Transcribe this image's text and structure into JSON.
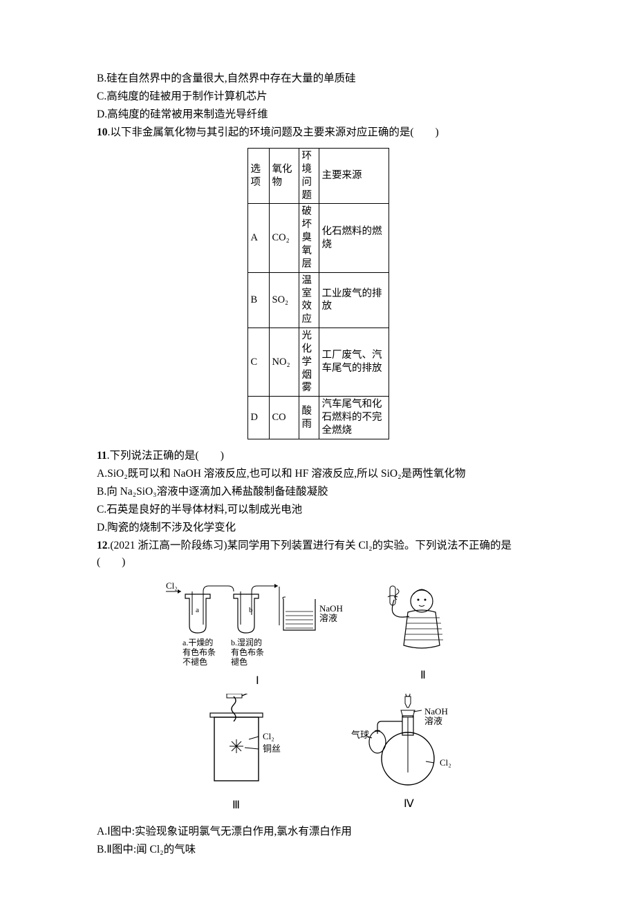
{
  "lines": {
    "b": "B.硅在自然界中的含量很大,自然界中存在大量的单质硅",
    "c": "C.高纯度的硅被用于制作计算机芯片",
    "d": "D.高纯度的硅常被用来制造光导纤维"
  },
  "q10": {
    "num": "10",
    "text": ".以下非金属氧化物与其引起的环境问题及主要来源对应正确的是(　　)",
    "table": {
      "headers": [
        "选项",
        "氧化物",
        "环境问题",
        "主要来源"
      ],
      "rows": [
        {
          "opt": "A",
          "oxide": "CO₂",
          "issue": "破坏臭氧层",
          "src": "化石燃料的燃烧"
        },
        {
          "opt": "B",
          "oxide": "SO₂",
          "issue": "温室效应",
          "src": "工业废气的排放"
        },
        {
          "opt": "C",
          "oxide": "NO₂",
          "issue": "光化学烟雾",
          "src": "工厂废气、汽车尾气的排放"
        },
        {
          "opt": "D",
          "oxide": "CO",
          "issue": "酸雨",
          "src": "汽车尾气和化石燃料的不完全燃烧"
        }
      ]
    },
    "colors": {
      "border": "#000000",
      "text": "#000000"
    }
  },
  "q11": {
    "num": "11",
    "text": ".下列说法正确的是(　　)",
    "opts": {
      "a": "A.SiO₂既可以和 NaOH 溶液反应,也可以和 HF 溶液反应,所以 SiO₂是两性氧化物",
      "b": "B.向 Na₂SiO₃溶液中逐滴加入稀盐酸制备硅酸凝胶",
      "c": "C.石英是良好的半导体材料,可以制成光电池",
      "d": "D.陶瓷的烧制不涉及化学变化"
    }
  },
  "q12": {
    "num": "12",
    "text_prefix": ".(2021 浙江高一阶段练习)某同学用下列装置进行有关 Cl₂的实验。下列说法不正确的是(　　)",
    "labels": {
      "cl2": "Cl₂",
      "naoh": "NaOH\n溶液",
      "a_top": "a",
      "b_top": "b",
      "a_txt1": "a.干燥的",
      "a_txt2": "有色布条",
      "a_txt3": "不褪色",
      "b_txt1": "b.湿润的",
      "b_txt2": "有色布条",
      "b_txt3": "褪色",
      "cu": "铜丝",
      "qi": "气球",
      "roman1": "Ⅰ",
      "roman2": "Ⅱ",
      "roman3": "Ⅲ",
      "roman4": "Ⅳ"
    },
    "opts": {
      "a": "A.Ⅰ图中:实验现象证明氯气无漂白作用,氯水有漂白作用",
      "b": "B.Ⅱ图中:闻 Cl₂的气味"
    },
    "style": {
      "stroke": "#000000",
      "fill_none": "none",
      "hatch": "#000000",
      "font": "SimSun"
    }
  }
}
